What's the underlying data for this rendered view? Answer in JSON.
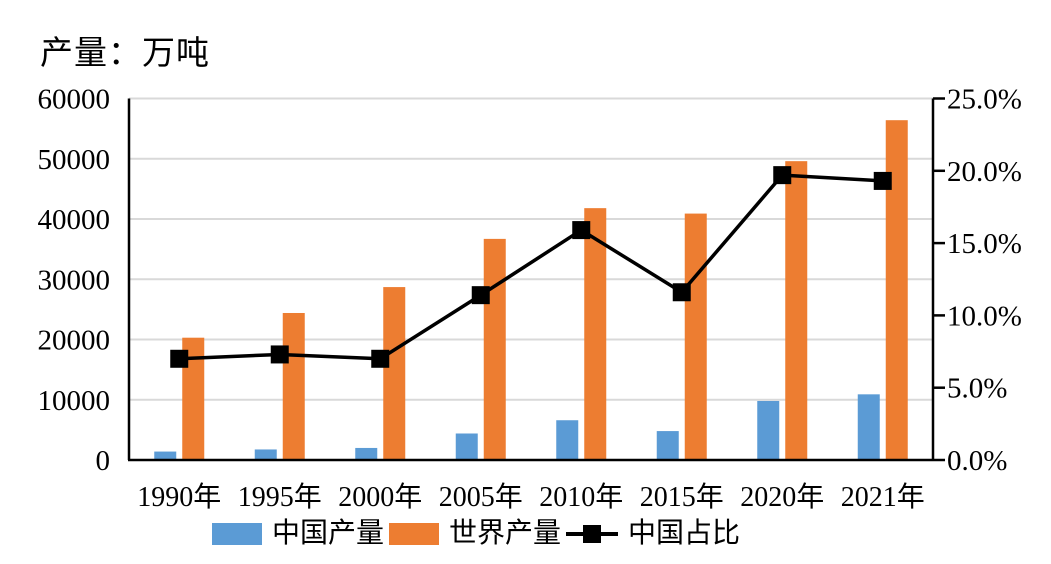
{
  "title": "产量：万吨",
  "legend": {
    "items": [
      {
        "label": "中国产量",
        "color": "#5B9BD5",
        "symbol": "bar-swatch"
      },
      {
        "label": "世界产量",
        "color": "#ED7D31",
        "symbol": "bar-swatch"
      },
      {
        "label": "中国占比",
        "color": "#000000",
        "symbol": "line-with-square-marker"
      }
    ]
  },
  "colors": {
    "china_bar": "#5B9BD5",
    "world_bar": "#ED7D31",
    "share_line": "#000000",
    "gridline": "#D9D9D9",
    "axis": "#000000",
    "background": "#FFFFFF"
  },
  "chart_data": {
    "type": "bar",
    "title": "产量：万吨",
    "categories": [
      "1990年",
      "1995年",
      "2000年",
      "2005年",
      "2010年",
      "2015年",
      "2020年",
      "2021年"
    ],
    "series": [
      {
        "name": "中国产量",
        "type": "bar",
        "axis": "left",
        "color": "#5B9BD5",
        "values": [
          1400,
          1750,
          2000,
          4400,
          6600,
          4800,
          9800,
          10900
        ]
      },
      {
        "name": "世界产量",
        "type": "bar",
        "axis": "left",
        "color": "#ED7D31",
        "values": [
          20300,
          24400,
          28700,
          36700,
          41800,
          40900,
          49600,
          56400
        ]
      },
      {
        "name": "中国占比",
        "type": "line",
        "axis": "right",
        "color": "#000000",
        "marker": "black-square",
        "unit": "%",
        "values": [
          7.0,
          7.3,
          7.0,
          11.4,
          15.9,
          11.6,
          19.7,
          19.3
        ]
      }
    ],
    "left_axis": {
      "label": "产量：万吨",
      "min": 0,
      "max": 60000,
      "step": 10000,
      "tick_labels": [
        "0",
        "10000",
        "20000",
        "30000",
        "40000",
        "50000",
        "60000"
      ]
    },
    "right_axis": {
      "min": 0,
      "max": 25,
      "step": 5,
      "tick_labels": [
        "0.0%",
        "5.0%",
        "10.0%",
        "15.0%",
        "20.0%",
        "25.0%"
      ]
    },
    "grid": true,
    "legend_position": "bottom",
    "legend": [
      "中国产量",
      "世界产量",
      "中国占比"
    ]
  }
}
